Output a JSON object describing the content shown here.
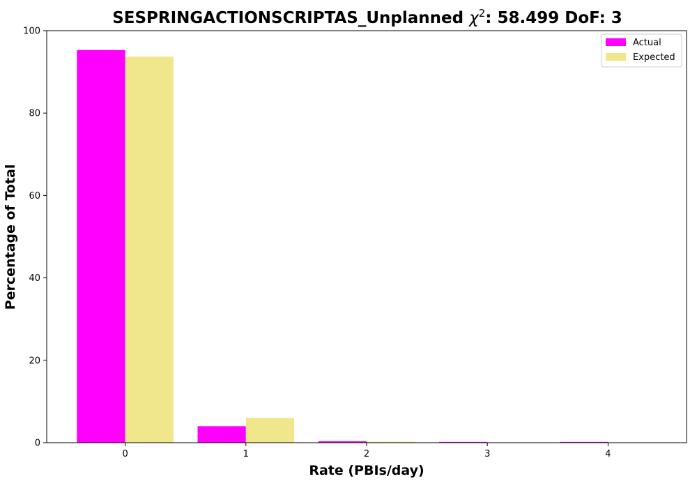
{
  "chart_data": {
    "type": "bar",
    "title_main": "SESPRINGACTIONSCRIPTAS_Unplanned ",
    "title_chi": "χ",
    "title_sup": "2",
    "title_tail": ": 58.499 DoF: 3",
    "xlabel": "Rate (PBIs/day)",
    "ylabel": "Percentage of Total",
    "categories": [
      "0",
      "1",
      "2",
      "3",
      "4"
    ],
    "x": [
      0,
      1,
      2,
      3,
      4
    ],
    "ylim": [
      0,
      100
    ],
    "xlim": [
      -0.65,
      4.65
    ],
    "yticks": [
      0,
      20,
      40,
      60,
      80,
      100
    ],
    "yticklabels": [
      "0",
      "20",
      "40",
      "60",
      "80",
      "100"
    ],
    "series": [
      {
        "name": "Actual",
        "color": "#ff00ff",
        "values": [
          95.3,
          4.0,
          0.35,
          0.2,
          0.2
        ]
      },
      {
        "name": "Expected",
        "color": "#f0e68c",
        "values": [
          93.7,
          6.0,
          0.25,
          0.02,
          0.0
        ]
      }
    ],
    "grid": false,
    "legend": "top-right"
  }
}
